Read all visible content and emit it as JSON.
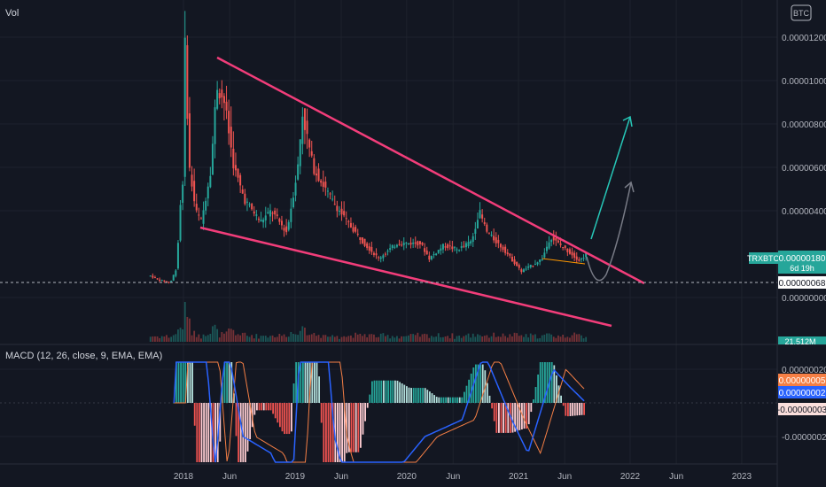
{
  "header": {
    "vol_label": "Vol",
    "currency_badge": "BTC"
  },
  "price_axis": {
    "ticks": [
      {
        "value": 1.2e-05,
        "label": "0.00001200"
      },
      {
        "value": 1e-05,
        "label": "0.00001000"
      },
      {
        "value": 8e-06,
        "label": "0.00000800"
      },
      {
        "value": 6e-06,
        "label": "0.00000600"
      },
      {
        "value": 4e-06,
        "label": "0.00000400"
      },
      {
        "value": 0.0,
        "label": "0.00000000"
      }
    ]
  },
  "symbol_badge": {
    "symbol": "TRXBTC",
    "price": "0.00000180",
    "countdown": "6d 19h",
    "color": "#26a69a"
  },
  "reference_line": {
    "value": 6.8e-07,
    "label": "0.00000068"
  },
  "volume": {
    "last_label": "21.512M"
  },
  "macd": {
    "title": "MACD (12, 26, close, 9, EMA, EMA)",
    "ticks": [
      {
        "value": 2e-07,
        "label": "0.00000020"
      },
      {
        "value": -2e-07,
        "label": "-0.00000020"
      }
    ],
    "badges": [
      {
        "label": "0.00000005",
        "color": "#f57f45",
        "text_color": "#ffffff"
      },
      {
        "label": "0.00000002",
        "color": "#2962ff",
        "text_color": "#ffffff"
      },
      {
        "label": "-0.00000003",
        "color": "#fbdfdc",
        "text_color": "#131722"
      }
    ]
  },
  "time_axis": {
    "labels": [
      "2018",
      "Jun",
      "2019",
      "Jun",
      "2020",
      "Jun",
      "2021",
      "Jun",
      "2022",
      "Jun",
      "2023"
    ]
  },
  "colors": {
    "up": "#26a69a",
    "down": "#ef5350",
    "wedge": "#f23d7a",
    "macd_line": "#2962ff",
    "signal_line": "#f57f45",
    "arrow_teal": "#26c6b7",
    "arrow_grey": "#787b86",
    "small_trend": "#ff9800"
  },
  "chart_data": {
    "type": "candlestick",
    "symbol": "TRXBTC",
    "x_range": [
      "2017-09",
      "2023-05"
    ],
    "ylim": [
      0,
      1.28e-05
    ],
    "annotations": [
      "falling wedge",
      "projection arrows"
    ],
    "price_path": [
      [
        "2017-09-15",
        1e-06
      ],
      [
        "2017-10-15",
        8e-07
      ],
      [
        "2017-11-20",
        7e-07
      ],
      [
        "2017-12-10",
        1.4e-06
      ],
      [
        "2017-12-20",
        4e-06
      ],
      [
        "2018-01-03",
        6e-06
      ],
      [
        "2018-01-05",
        1.2e-05
      ],
      [
        "2018-01-20",
        6e-06
      ],
      [
        "2018-02-10",
        4e-06
      ],
      [
        "2018-03-01",
        3.5e-06
      ],
      [
        "2018-04-01",
        6e-06
      ],
      [
        "2018-04-20",
        9.8e-06
      ],
      [
        "2018-05-15",
        9e-06
      ],
      [
        "2018-06-15",
        6e-06
      ],
      [
        "2018-07-20",
        4.5e-06
      ],
      [
        "2018-09-10",
        3.5e-06
      ],
      [
        "2018-10-15",
        4e-06
      ],
      [
        "2018-12-05",
        3e-06
      ],
      [
        "2019-01-10",
        6e-06
      ],
      [
        "2019-01-25",
        8.5e-06
      ],
      [
        "2019-03-01",
        6e-06
      ],
      [
        "2019-05-01",
        4.5e-06
      ],
      [
        "2019-06-20",
        3.5e-06
      ],
      [
        "2019-08-15",
        2.5e-06
      ],
      [
        "2019-10-01",
        1.8e-06
      ],
      [
        "2019-12-01",
        2.5e-06
      ],
      [
        "2020-02-15",
        2.5e-06
      ],
      [
        "2020-03-15",
        1.8e-06
      ],
      [
        "2020-05-01",
        2.4e-06
      ],
      [
        "2020-06-15",
        2.2e-06
      ],
      [
        "2020-08-01",
        2.6e-06
      ],
      [
        "2020-08-25",
        4e-06
      ],
      [
        "2020-09-20",
        3e-06
      ],
      [
        "2020-11-15",
        2.2e-06
      ],
      [
        "2021-01-10",
        1.2e-06
      ],
      [
        "2021-02-15",
        1.5e-06
      ],
      [
        "2021-03-20",
        1.8e-06
      ],
      [
        "2021-04-15",
        2.8e-06
      ],
      [
        "2021-05-10",
        2.5e-06
      ],
      [
        "2021-06-15",
        2.1e-06
      ],
      [
        "2021-07-20",
        1.7e-06
      ],
      [
        "2021-08-10",
        2e-06
      ]
    ],
    "macd_path": [
      [
        "2017-12-01",
        0.0
      ],
      [
        "2018-01-10",
        2e-06
      ],
      [
        "2018-02-15",
        1e-06
      ],
      [
        "2018-04-15",
        -4e-07
      ],
      [
        "2018-05-20",
        4e-07
      ],
      [
        "2018-07-15",
        -2e-07
      ],
      [
        "2018-10-15",
        -3e-07
      ],
      [
        "2018-12-20",
        -6e-07
      ],
      [
        "2019-01-25",
        6e-07
      ],
      [
        "2019-03-10",
        1.2e-06
      ],
      [
        "2019-05-10",
        -2e-07
      ],
      [
        "2019-08-01",
        -8e-07
      ],
      [
        "2019-12-01",
        -4e-07
      ],
      [
        "2020-03-01",
        -2e-07
      ],
      [
        "2020-07-01",
        -1e-07
      ],
      [
        "2020-09-10",
        3e-07
      ],
      [
        "2020-12-10",
        -1e-07
      ],
      [
        "2021-02-01",
        -3e-07
      ],
      [
        "2021-04-25",
        2e-07
      ],
      [
        "2021-06-15",
        1e-07
      ],
      [
        "2021-08-10",
        0.0
      ]
    ]
  }
}
